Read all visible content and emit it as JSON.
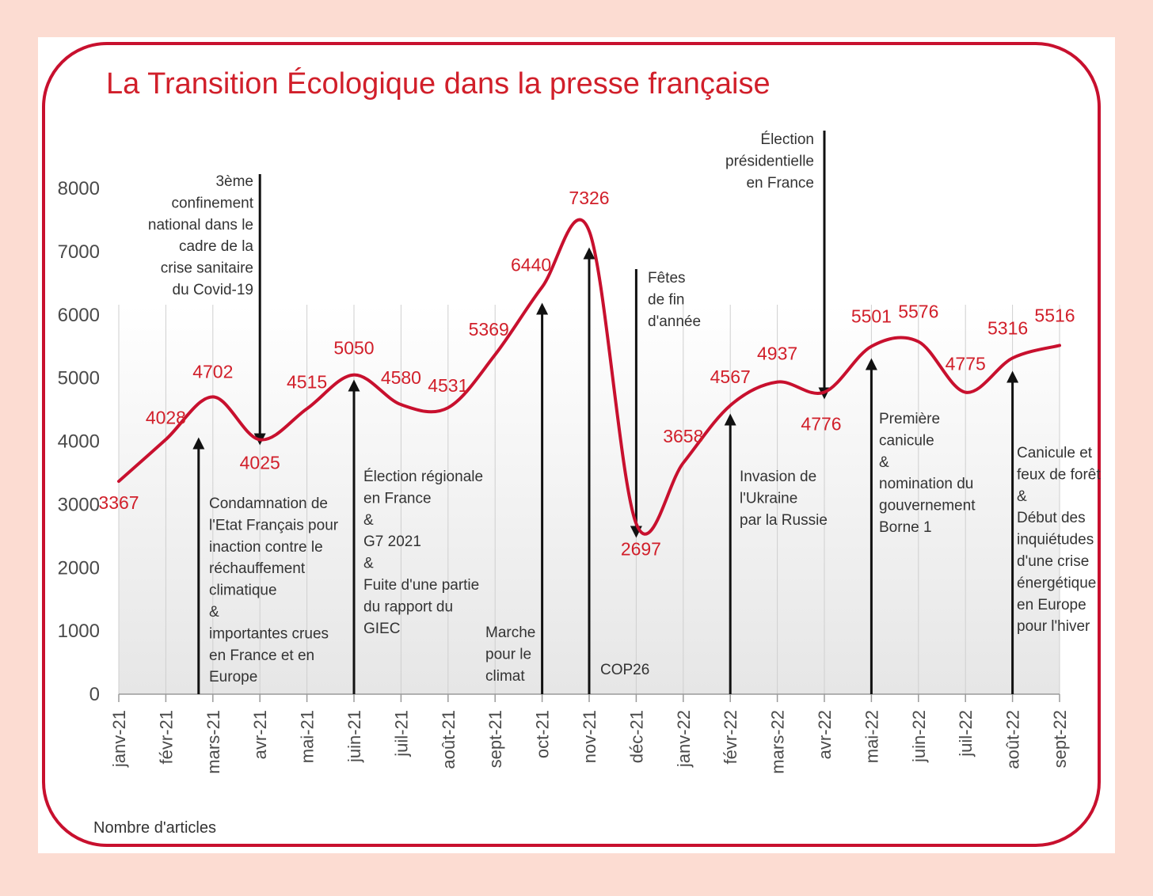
{
  "chart_data": {
    "type": "line",
    "title": "La Transition Écologique dans la presse française",
    "ylabel": "Nombre d'articles",
    "ylim": [
      0,
      8000
    ],
    "yticks": [
      "0",
      "1000",
      "2000",
      "3000",
      "4000",
      "5000",
      "6000",
      "7000",
      "8000"
    ],
    "categories": [
      "janv-21",
      "févr-21",
      "mars-21",
      "avr-21",
      "mai-21",
      "juin-21",
      "juil-21",
      "août-21",
      "sept-21",
      "oct-21",
      "nov-21",
      "déc-21",
      "janv-22",
      "févr-22",
      "mars-22",
      "avr-22",
      "mai-22",
      "juin-22",
      "juil-22",
      "août-22",
      "sept-22"
    ],
    "series": [
      {
        "values": [
          3367,
          4028,
          4702,
          4025,
          4515,
          5050,
          4580,
          4531,
          5369,
          6440,
          7326,
          2697,
          3658,
          4567,
          4937,
          4776,
          5501,
          5576,
          4775,
          5316,
          5516
        ]
      }
    ],
    "data_labels": [
      "3367",
      "4028",
      "4702",
      "4025",
      "4515",
      "5050",
      "4580",
      "4531",
      "5369",
      "6440",
      "7326",
      "2697",
      "3658",
      "4567",
      "4937",
      "4776",
      "5501",
      "5576",
      "4775",
      "5316",
      "5516"
    ],
    "grid": true,
    "colors": {
      "line": "#c8102e",
      "labels": "#d11f2a",
      "frame": "#c8102e",
      "background": "#fcdcd2"
    },
    "annotations": [
      {
        "at": "mars-21",
        "direction": "up",
        "lines": [
          "Condamnation de",
          "l'Etat Français pour",
          "inaction contre le",
          "réchauffement",
          "climatique",
          "&",
          "importantes crues",
          "en France et en",
          "Europe"
        ]
      },
      {
        "at": "avr-21",
        "direction": "down",
        "lines": [
          "3ème",
          "confinement",
          "national dans le",
          "cadre de la",
          "crise sanitaire",
          "du Covid-19"
        ]
      },
      {
        "at": "juin-21",
        "direction": "up",
        "lines": [
          "Élection régionale",
          "en France",
          "&",
          "G7 2021",
          "&",
          "Fuite d'une partie",
          "du rapport du",
          "GIEC"
        ]
      },
      {
        "at": "oct-21",
        "direction": "up",
        "lines": [
          "Marche",
          "pour le",
          "climat"
        ]
      },
      {
        "at": "nov-21",
        "direction": "up",
        "lines": [
          "COP26"
        ]
      },
      {
        "at": "déc-21",
        "direction": "down",
        "lines": [
          "Fêtes",
          "de fin",
          "d'année"
        ]
      },
      {
        "at": "févr-22",
        "direction": "up",
        "lines": [
          "Invasion de",
          "l'Ukraine",
          "par la Russie"
        ]
      },
      {
        "at": "avr-22",
        "direction": "down",
        "lines": [
          "Élection",
          "présidentielle",
          "en France"
        ]
      },
      {
        "at": "mai-22",
        "direction": "up",
        "lines": [
          "Première",
          "canicule",
          "&",
          "nomination du",
          "gouvernement",
          "Borne 1"
        ]
      },
      {
        "at": "août-22",
        "direction": "up",
        "lines": [
          "Canicule et",
          "feux de forêt",
          "&",
          "Début des",
          "inquiétudes",
          "d'une crise",
          "énergétique",
          "en Europe",
          "pour l'hiver"
        ]
      }
    ]
  }
}
